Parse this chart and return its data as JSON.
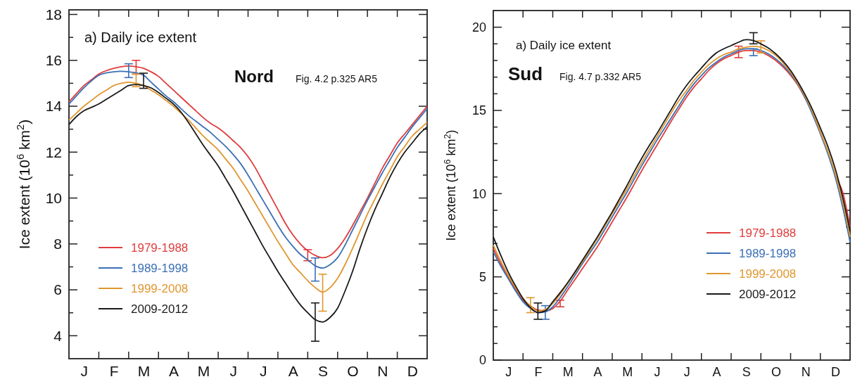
{
  "chart_data": [
    {
      "type": "line",
      "title": "a) Daily ice extent",
      "annotations": [
        "Nord",
        "Fig. 4.2 p.325 AR5"
      ],
      "ylabel": "Ice extent (10$^{6}$ km$^{2}$)",
      "ylim": [
        3,
        18.2
      ],
      "categories": [
        null,
        null,
        "J",
        null,
        null,
        null,
        "F",
        null,
        null,
        null,
        "M",
        null,
        null,
        null,
        "A",
        null,
        null,
        null,
        "M",
        null,
        null,
        null,
        "J",
        null,
        null,
        null,
        "J",
        null,
        null,
        null,
        "A",
        null,
        null,
        null,
        "S",
        null,
        null,
        null,
        "O",
        null,
        null,
        null,
        "N",
        null,
        null,
        null,
        "D",
        null,
        null
      ],
      "yticks": [
        4,
        {
          "value": 5,
          "label": null
        },
        6,
        {
          "value": 7,
          "label": null
        },
        8,
        {
          "value": 9,
          "label": null
        },
        10,
        {
          "value": 11,
          "label": null
        },
        12,
        {
          "value": 13,
          "label": null
        },
        14,
        {
          "value": 15,
          "label": null
        },
        16,
        {
          "value": 17,
          "label": null
        },
        18
      ],
      "legend": "bottom left",
      "grid": false,
      "marker": "none",
      "line_style": "solid",
      "series": [
        {
          "name": "1979-1988",
          "color": "#e03c3c",
          "values": [
            14.2,
            14.55,
            14.9,
            15.15,
            15.4,
            15.55,
            15.65,
            15.72,
            15.75,
            15.72,
            15.65,
            15.5,
            15.3,
            15.0,
            14.7,
            14.4,
            14.1,
            13.8,
            13.5,
            13.25,
            13.05,
            12.8,
            12.5,
            12.2,
            11.8,
            11.3,
            10.7,
            10.1,
            9.5,
            8.9,
            8.4,
            8.0,
            7.7,
            7.5,
            7.4,
            7.5,
            7.8,
            8.25,
            8.8,
            9.4,
            10.0,
            10.65,
            11.3,
            11.85,
            12.4,
            12.8,
            13.2,
            13.6,
            14.0
          ],
          "errors": [
            null,
            null,
            null,
            null,
            null,
            null,
            null,
            null,
            null,
            [
              15.4,
              16.0
            ],
            null,
            null,
            null,
            null,
            null,
            null,
            null,
            null,
            null,
            null,
            null,
            null,
            null,
            null,
            null,
            null,
            null,
            null,
            null,
            null,
            null,
            null,
            [
              7.27,
              7.75
            ],
            null,
            null,
            null,
            null,
            null,
            null,
            null,
            null,
            null,
            null,
            null,
            null,
            null,
            null,
            null,
            null
          ]
        },
        {
          "name": "1989-1998",
          "color": "#3a6fb5",
          "values": [
            14.1,
            14.45,
            14.8,
            15.1,
            15.35,
            15.45,
            15.5,
            15.52,
            15.5,
            15.45,
            15.35,
            15.05,
            14.75,
            14.45,
            14.2,
            13.9,
            13.6,
            13.35,
            13.1,
            12.85,
            12.55,
            12.25,
            11.9,
            11.5,
            11.0,
            10.45,
            9.9,
            9.35,
            8.8,
            8.3,
            7.9,
            7.55,
            7.3,
            7.05,
            6.95,
            7.1,
            7.4,
            7.95,
            8.6,
            9.25,
            9.9,
            10.5,
            11.1,
            11.65,
            12.2,
            12.65,
            13.1,
            13.5,
            13.9
          ],
          "errors": [
            null,
            null,
            null,
            null,
            null,
            null,
            null,
            null,
            [
              15.25,
              15.85
            ],
            null,
            null,
            null,
            null,
            null,
            null,
            null,
            null,
            null,
            null,
            null,
            null,
            null,
            null,
            null,
            null,
            null,
            null,
            null,
            null,
            null,
            null,
            null,
            null,
            [
              6.38,
              7.39
            ],
            null,
            null,
            null,
            null,
            null,
            null,
            null,
            null,
            null,
            null,
            null,
            null,
            null,
            null,
            null
          ]
        },
        {
          "name": "1999-2008",
          "color": "#e0962e",
          "values": [
            13.4,
            13.7,
            14.0,
            14.25,
            14.5,
            14.7,
            14.9,
            15.0,
            15.05,
            15.0,
            14.9,
            14.7,
            14.5,
            14.25,
            14.0,
            13.7,
            13.4,
            13.05,
            12.7,
            12.4,
            12.1,
            11.7,
            11.3,
            10.8,
            10.3,
            9.75,
            9.2,
            8.65,
            8.1,
            7.6,
            7.1,
            6.75,
            6.4,
            6.1,
            5.9,
            6.1,
            6.5,
            7.1,
            7.8,
            8.55,
            9.3,
            9.95,
            10.6,
            11.2,
            11.8,
            12.25,
            12.7,
            13.0,
            13.3
          ],
          "errors": [
            null,
            null,
            null,
            null,
            null,
            null,
            null,
            null,
            null,
            [
              14.85,
              15.4
            ],
            null,
            null,
            null,
            null,
            null,
            null,
            null,
            null,
            null,
            null,
            null,
            null,
            null,
            null,
            null,
            null,
            null,
            null,
            null,
            null,
            null,
            null,
            null,
            null,
            [
              5.07,
              6.68
            ],
            null,
            null,
            null,
            null,
            null,
            null,
            null,
            null,
            null,
            null,
            null,
            null,
            null,
            null
          ]
        },
        {
          "name": "2009-2012",
          "color": "#1a1a1a",
          "values": [
            13.2,
            13.55,
            13.8,
            13.95,
            14.1,
            14.3,
            14.5,
            14.7,
            14.9,
            14.95,
            14.9,
            14.8,
            14.6,
            14.35,
            14.1,
            13.75,
            13.3,
            12.8,
            12.3,
            11.85,
            11.4,
            10.85,
            10.3,
            9.7,
            9.1,
            8.5,
            7.9,
            7.35,
            6.8,
            6.3,
            5.8,
            5.35,
            5.0,
            4.7,
            4.6,
            4.8,
            5.2,
            5.95,
            6.8,
            7.8,
            8.7,
            9.5,
            10.2,
            10.9,
            11.5,
            12.0,
            12.4,
            12.8,
            13.1
          ],
          "errors": [
            null,
            null,
            null,
            null,
            null,
            null,
            null,
            null,
            null,
            null,
            [
              14.78,
              15.44
            ],
            null,
            null,
            null,
            null,
            null,
            null,
            null,
            null,
            null,
            null,
            null,
            null,
            null,
            null,
            null,
            null,
            null,
            null,
            null,
            null,
            null,
            null,
            [
              3.76,
              5.43
            ],
            null,
            null,
            null,
            null,
            null,
            null,
            null,
            null,
            null,
            null,
            null,
            null,
            null,
            null,
            null
          ]
        }
      ]
    },
    {
      "type": "line",
      "title": "a) Daily ice extent",
      "annotations": [
        "Sud",
        "Fig. 4.7 p.332 AR5"
      ],
      "ylabel": "Ice extent (10$^{6}$ km$^{2}$)",
      "ylim": [
        0,
        21
      ],
      "categories": [
        null,
        null,
        "J",
        null,
        null,
        null,
        "F",
        null,
        null,
        null,
        "M",
        null,
        null,
        null,
        "A",
        null,
        null,
        null,
        "M",
        null,
        null,
        null,
        "J",
        null,
        null,
        null,
        "J",
        null,
        null,
        null,
        "A",
        null,
        null,
        null,
        "S",
        null,
        null,
        null,
        "O",
        null,
        null,
        null,
        "N",
        null,
        null,
        null,
        "D",
        null,
        null
      ],
      "yticks": [
        0,
        {
          "value": 1,
          "label": null
        },
        {
          "value": 2,
          "label": null
        },
        {
          "value": 3,
          "label": null
        },
        {
          "value": 4,
          "label": null
        },
        5,
        {
          "value": 6,
          "label": null
        },
        {
          "value": 7,
          "label": null
        },
        {
          "value": 8,
          "label": null
        },
        {
          "value": 9,
          "label": null
        },
        10,
        {
          "value": 11,
          "label": null
        },
        {
          "value": 12,
          "label": null
        },
        {
          "value": 13,
          "label": null
        },
        {
          "value": 14,
          "label": null
        },
        15,
        {
          "value": 16,
          "label": null
        },
        {
          "value": 17,
          "label": null
        },
        {
          "value": 18,
          "label": null
        },
        {
          "value": 19,
          "label": null
        },
        20
      ],
      "legend": "right",
      "grid": false,
      "marker": "none",
      "line_style": "solid",
      "series": [
        {
          "name": "1979-1988",
          "color": "#e03c3c",
          "values": [
            6.7,
            5.8,
            5.0,
            4.25,
            3.6,
            3.25,
            3.0,
            2.95,
            3.1,
            3.55,
            4.2,
            4.85,
            5.5,
            6.15,
            6.8,
            7.55,
            8.3,
            9.05,
            9.8,
            10.6,
            11.4,
            12.15,
            12.9,
            13.65,
            14.4,
            15.1,
            15.8,
            16.4,
            16.9,
            17.4,
            17.8,
            18.1,
            18.3,
            18.5,
            18.6,
            18.6,
            18.5,
            18.3,
            18.0,
            17.6,
            17.1,
            16.5,
            15.7,
            14.8,
            13.7,
            12.5,
            11.1,
            10.1,
            8.0
          ],
          "errors": [
            null,
            null,
            null,
            null,
            null,
            null,
            null,
            null,
            null,
            [
              3.2,
              3.6
            ],
            null,
            null,
            null,
            null,
            null,
            null,
            null,
            null,
            null,
            null,
            null,
            null,
            null,
            null,
            null,
            null,
            null,
            null,
            null,
            null,
            null,
            null,
            null,
            [
              18.17,
              18.86
            ],
            null,
            null,
            null,
            null,
            null,
            null,
            null,
            null,
            null,
            null,
            null,
            null,
            null,
            null,
            null
          ]
        },
        {
          "name": "1989-1998",
          "color": "#3a6fb5",
          "values": [
            6.5,
            5.65,
            4.9,
            4.15,
            3.5,
            3.1,
            2.85,
            2.9,
            3.2,
            3.75,
            4.4,
            5.1,
            5.8,
            6.45,
            7.1,
            7.85,
            8.6,
            9.35,
            10.1,
            10.9,
            11.7,
            12.45,
            13.2,
            13.9,
            14.6,
            15.3,
            16.0,
            16.6,
            17.1,
            17.55,
            17.9,
            18.2,
            18.4,
            18.6,
            18.7,
            18.7,
            18.6,
            18.4,
            18.1,
            17.7,
            17.2,
            16.55,
            15.7,
            14.7,
            13.6,
            12.4,
            11.0,
            9.2,
            7.1
          ],
          "errors": [
            null,
            null,
            null,
            null,
            null,
            null,
            null,
            [
              2.45,
              3.27
            ],
            null,
            null,
            null,
            null,
            null,
            null,
            null,
            null,
            null,
            null,
            null,
            null,
            null,
            null,
            null,
            null,
            null,
            null,
            null,
            null,
            null,
            null,
            null,
            null,
            null,
            null,
            null,
            [
              18.29,
              18.7
            ],
            null,
            null,
            null,
            null,
            null,
            null,
            null,
            null,
            null,
            null,
            null,
            null,
            null
          ]
        },
        {
          "name": "1999-2008",
          "color": "#e0962e",
          "values": [
            6.9,
            5.95,
            5.1,
            4.35,
            3.7,
            3.25,
            2.95,
            3.05,
            3.4,
            3.95,
            4.6,
            5.25,
            5.9,
            6.6,
            7.3,
            8.05,
            8.8,
            9.55,
            10.3,
            11.1,
            11.9,
            12.65,
            13.4,
            14.15,
            14.9,
            15.6,
            16.2,
            16.8,
            17.3,
            17.75,
            18.1,
            18.35,
            18.5,
            18.7,
            18.8,
            18.85,
            18.8,
            18.6,
            18.3,
            17.85,
            17.3,
            16.6,
            15.8,
            14.85,
            13.7,
            12.55,
            11.2,
            9.5,
            7.4
          ],
          "errors": [
            null,
            null,
            null,
            null,
            null,
            [
              2.85,
              3.75
            ],
            null,
            null,
            null,
            null,
            null,
            null,
            null,
            null,
            null,
            null,
            null,
            null,
            null,
            null,
            null,
            null,
            null,
            null,
            null,
            null,
            null,
            null,
            null,
            null,
            null,
            null,
            null,
            null,
            null,
            null,
            [
              18.45,
              19.18
            ],
            null,
            null,
            null,
            null,
            null,
            null,
            null,
            null,
            null,
            null,
            null,
            null
          ]
        },
        {
          "name": "2009-2012",
          "color": "#1a1a1a",
          "values": [
            7.4,
            6.3,
            5.3,
            4.45,
            3.7,
            3.15,
            2.85,
            2.95,
            3.5,
            4.05,
            4.65,
            5.3,
            6.0,
            6.7,
            7.4,
            8.15,
            8.9,
            9.7,
            10.5,
            11.35,
            12.15,
            12.9,
            13.6,
            14.35,
            15.1,
            15.85,
            16.5,
            17.05,
            17.55,
            18.05,
            18.45,
            18.7,
            18.9,
            19.1,
            19.25,
            19.2,
            19.0,
            18.75,
            18.4,
            17.95,
            17.4,
            16.7,
            15.9,
            15.0,
            13.95,
            12.85,
            11.5,
            9.8,
            7.75
          ],
          "errors": [
            null,
            null,
            null,
            null,
            null,
            null,
            [
              2.45,
              3.43
            ],
            null,
            null,
            null,
            null,
            null,
            null,
            null,
            null,
            null,
            null,
            null,
            null,
            null,
            null,
            null,
            null,
            null,
            null,
            null,
            null,
            null,
            null,
            null,
            null,
            null,
            null,
            null,
            null,
            [
              19.0,
              19.67
            ],
            null,
            null,
            null,
            null,
            null,
            null,
            null,
            null,
            null,
            null,
            null,
            null,
            null
          ]
        }
      ]
    }
  ]
}
